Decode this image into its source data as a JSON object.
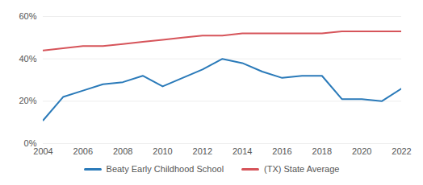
{
  "chart_data": {
    "type": "line",
    "x": [
      2004,
      2005,
      2006,
      2007,
      2008,
      2009,
      2010,
      2011,
      2012,
      2013,
      2014,
      2015,
      2016,
      2017,
      2018,
      2019,
      2020,
      2021,
      2022
    ],
    "series": [
      {
        "name": "Beaty Early Childhood School",
        "color": "#2a7ab9",
        "values": [
          11,
          22,
          25,
          28,
          29,
          32,
          27,
          31,
          35,
          40,
          38,
          34,
          31,
          32,
          32,
          21,
          21,
          20,
          26
        ]
      },
      {
        "name": "(TX) State Average",
        "color": "#d6545a",
        "values": [
          44,
          45,
          46,
          46,
          47,
          48,
          49,
          50,
          51,
          51,
          52,
          52,
          52,
          52,
          52,
          53,
          53,
          53,
          53
        ]
      }
    ],
    "xlim": [
      2004,
      2022
    ],
    "xticks": [
      2004,
      2006,
      2008,
      2010,
      2012,
      2014,
      2016,
      2018,
      2020,
      2022
    ],
    "ylim": [
      0,
      60
    ],
    "yticks": [
      {
        "value": 0,
        "label": "0%"
      },
      {
        "value": 20,
        "label": "20%"
      },
      {
        "value": 40,
        "label": "40%"
      },
      {
        "value": 60,
        "label": "60%"
      }
    ],
    "grid": true,
    "legend": "bottom"
  }
}
